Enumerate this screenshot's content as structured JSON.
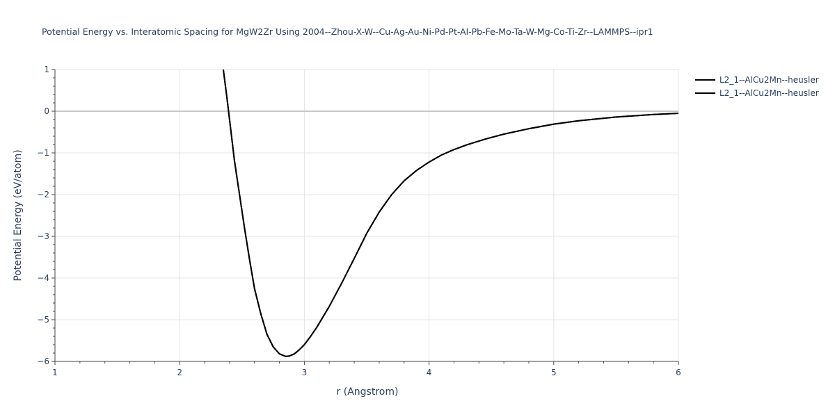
{
  "chart_data": {
    "type": "line",
    "title": "Potential Energy vs. Interatomic Spacing for MgW2Zr Using 2004--Zhou-X-W--Cu-Ag-Au-Ni-Pd-Pt-Al-Pb-Fe-Mo-Ta-W-Mg-Co-Ti-Zr--LAMMPS--ipr1",
    "xlabel": "r (Angstrom)",
    "ylabel": "Potential Energy (eV/atom)",
    "xlim": [
      1,
      6
    ],
    "ylim": [
      -6,
      1
    ],
    "xticks": [
      1,
      2,
      3,
      4,
      5,
      6
    ],
    "yticks": [
      1,
      0,
      -1,
      -2,
      -3,
      -4,
      -5,
      -6
    ],
    "xtick_labels": [
      "1",
      "2",
      "3",
      "4",
      "5",
      "6"
    ],
    "ytick_labels": [
      "1",
      "0",
      "−1",
      "−2",
      "−3",
      "−4",
      "−5",
      "−6"
    ],
    "grid": true,
    "legend_position": "top-right",
    "series": [
      {
        "name": "L2_1--AlCu2Mn--heusler",
        "color": "#000000",
        "x": [
          2.35,
          2.38,
          2.41,
          2.44,
          2.48,
          2.52,
          2.56,
          2.6,
          2.65,
          2.7,
          2.75,
          2.8,
          2.85,
          2.88,
          2.92,
          2.96,
          3.0,
          3.05,
          3.1,
          3.2,
          3.3,
          3.4,
          3.5,
          3.6,
          3.7,
          3.8,
          3.9,
          4.0,
          4.1,
          4.2,
          4.3,
          4.45,
          4.6,
          4.8,
          5.0,
          5.2,
          5.5,
          5.8,
          6.0
        ],
        "y": [
          1.0,
          0.3,
          -0.45,
          -1.2,
          -2.0,
          -2.8,
          -3.55,
          -4.25,
          -4.85,
          -5.35,
          -5.65,
          -5.82,
          -5.88,
          -5.87,
          -5.82,
          -5.72,
          -5.6,
          -5.4,
          -5.18,
          -4.68,
          -4.12,
          -3.53,
          -2.93,
          -2.42,
          -2.0,
          -1.67,
          -1.42,
          -1.22,
          -1.05,
          -0.92,
          -0.81,
          -0.67,
          -0.55,
          -0.42,
          -0.31,
          -0.23,
          -0.14,
          -0.08,
          -0.05
        ]
      },
      {
        "name": "L2_1--AlCu2Mn--heusler",
        "color": "#000000",
        "x": [
          2.35,
          2.38,
          2.41,
          2.44,
          2.48,
          2.52,
          2.56,
          2.6,
          2.65,
          2.7,
          2.75,
          2.8,
          2.85,
          2.88,
          2.92,
          2.96,
          3.0,
          3.05,
          3.1,
          3.2,
          3.3,
          3.4,
          3.5,
          3.6,
          3.7,
          3.8,
          3.9,
          4.0,
          4.1,
          4.2,
          4.3,
          4.45,
          4.6,
          4.8,
          5.0,
          5.2,
          5.5,
          5.8,
          6.0
        ],
        "y": [
          1.0,
          0.3,
          -0.45,
          -1.2,
          -2.0,
          -2.8,
          -3.55,
          -4.25,
          -4.85,
          -5.35,
          -5.65,
          -5.82,
          -5.88,
          -5.87,
          -5.82,
          -5.72,
          -5.6,
          -5.4,
          -5.18,
          -4.68,
          -4.12,
          -3.53,
          -2.93,
          -2.42,
          -2.0,
          -1.67,
          -1.42,
          -1.22,
          -1.05,
          -0.92,
          -0.81,
          -0.67,
          -0.55,
          -0.42,
          -0.31,
          -0.23,
          -0.14,
          -0.08,
          -0.05
        ]
      }
    ]
  }
}
